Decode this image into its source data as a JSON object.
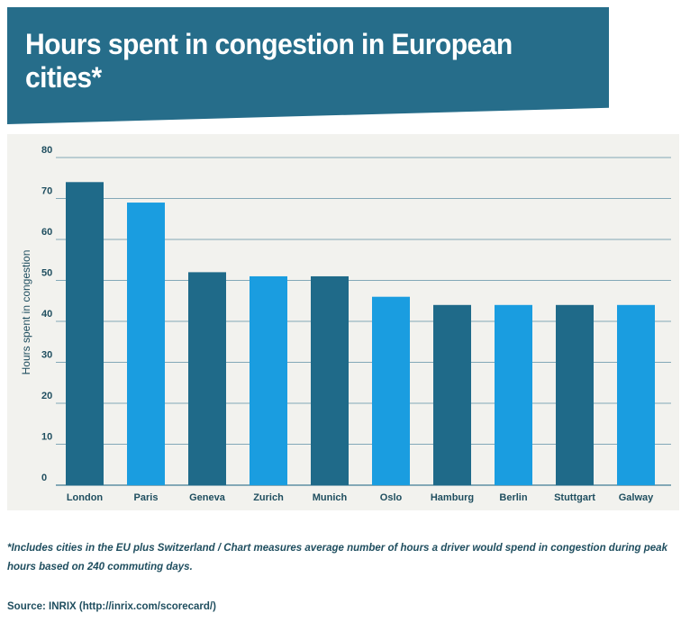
{
  "header": {
    "title": "Hours spent in congestion in European cities*"
  },
  "chart_data": {
    "type": "bar",
    "categories": [
      "London",
      "Paris",
      "Geneva",
      "Zurich",
      "Munich",
      "Oslo",
      "Hamburg",
      "Berlin",
      "Stuttgart",
      "Galway"
    ],
    "values": [
      74,
      69,
      52,
      51,
      51,
      46,
      44,
      44,
      44,
      44
    ],
    "ylabel": "Hours spent in congestion",
    "xlabel": "",
    "ylim": [
      0,
      80
    ],
    "yticks": [
      0,
      10,
      20,
      30,
      40,
      50,
      60,
      70,
      80
    ],
    "grid": true,
    "colors": [
      "#1f6a89",
      "#1a9de0",
      "#1f6a89",
      "#1a9de0",
      "#1f6a89",
      "#1a9de0",
      "#1f6a89",
      "#1a9de0",
      "#1f6a89",
      "#1a9de0"
    ]
  },
  "footnote": "*Includes cities in the EU plus Switzerland / Chart measures average number of hours a driver would spend in congestion during peak hours based on 240 commuting days.",
  "source": {
    "label": "Source: INRIX (http://inrix.com/scorecard/)"
  },
  "colors": {
    "banner": "#266d8a",
    "panel": "#f2f2ee",
    "gridline": "#5e8fa4",
    "text": "#1f4e5f"
  }
}
